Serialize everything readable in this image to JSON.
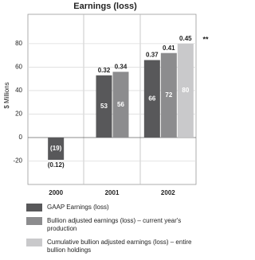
{
  "chart_data": {
    "type": "bar",
    "title": "Earnings (loss)",
    "y_label": "$ Millions",
    "categories": [
      "2000",
      "2001",
      "2002"
    ],
    "series": [
      {
        "name": "GAAP Earnings (loss)",
        "color": "#58585a",
        "values": [
          -19,
          53,
          66
        ],
        "value_labels": [
          "(19)",
          "53",
          "66"
        ],
        "eps": [
          -0.12,
          0.32,
          0.37
        ],
        "eps_labels": [
          "(0.12)",
          "0.32",
          "0.37"
        ]
      },
      {
        "name": "Bullion adjusted earnings (loss) – current year's production",
        "color": "#8c8c8e",
        "values": [
          null,
          56,
          72
        ],
        "eps": [
          null,
          0.34,
          0.41
        ]
      },
      {
        "name": "Cumulative bullion adjusted earnings (loss) – entire bullion holdings",
        "color": "#c9c9cb",
        "values": [
          null,
          null,
          80
        ],
        "eps": [
          null,
          null,
          0.45
        ]
      }
    ],
    "annotation": "**",
    "ylim": [
      -40,
      105
    ],
    "yticks": [
      -20,
      0,
      20,
      40,
      60,
      80
    ],
    "grid": true
  }
}
